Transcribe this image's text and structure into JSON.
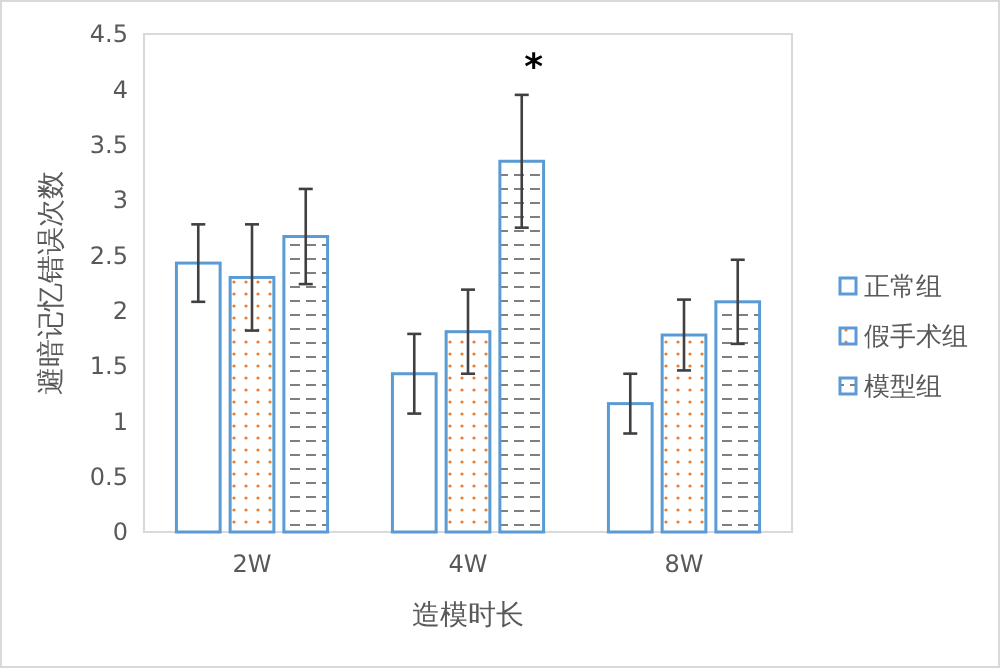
{
  "chart_data": {
    "type": "bar",
    "xlabel": "造模时长",
    "ylabel": "避暗记忆错误次数",
    "categories": [
      "2W",
      "4W",
      "8W"
    ],
    "ylim": [
      0,
      4.5
    ],
    "yticks": [
      0,
      0.5,
      1,
      1.5,
      2,
      2.5,
      3,
      3.5,
      4,
      4.5
    ],
    "grid": false,
    "legend": "right",
    "series": [
      {
        "name": "正常组",
        "color": "#5b9bd5",
        "values": [
          2.43,
          1.43,
          1.16
        ],
        "errors": [
          0.35,
          0.36,
          0.27
        ]
      },
      {
        "name": "假手术组",
        "color": "#5b9bd5",
        "values": [
          2.3,
          1.81,
          1.78
        ],
        "errors": [
          0.48,
          0.38,
          0.32
        ]
      },
      {
        "name": "模型组",
        "color": "#5b9bd5",
        "values": [
          2.67,
          3.35,
          2.08
        ],
        "errors": [
          0.43,
          0.6,
          0.38
        ]
      }
    ],
    "annotations": [
      "*"
    ]
  }
}
